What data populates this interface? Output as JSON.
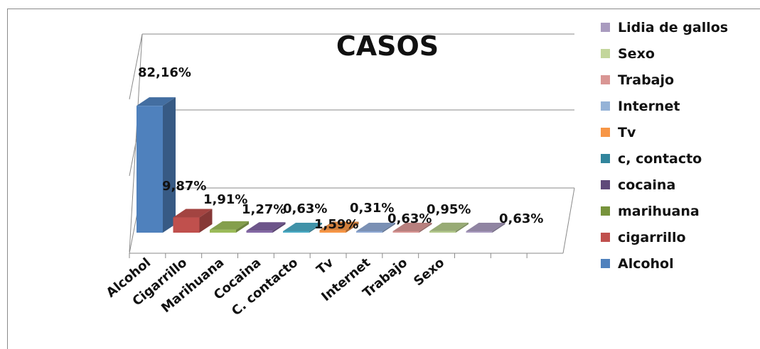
{
  "chart_data": {
    "type": "bar",
    "title": "CASOS",
    "categories": [
      "Alcohol",
      "Cigarrillo",
      "Marihuana",
      "Cocaina",
      "C. contacto",
      "Tv",
      "Internet",
      "Trabajo",
      "Sexo",
      "Lidia de gallos"
    ],
    "tick_labels": [
      "Alcohol",
      "Cigarrillo",
      "Marihuana",
      "Cocaina",
      "C. contacto",
      "Tv",
      "Internet",
      "Trabajo",
      "Sexo",
      "",
      ""
    ],
    "values": [
      82.16,
      9.87,
      1.91,
      1.27,
      0.63,
      1.59,
      0.31,
      0.63,
      0.95,
      0.63
    ],
    "data_labels": [
      "82,16%",
      "9,87%",
      "1,91%",
      "1,27%",
      "0,63%",
      "1,59%",
      "0,31%",
      "0,63%",
      "0,95%",
      "0,63%"
    ],
    "colors": [
      "#4F81BD",
      "#C0504D",
      "#9BBB59",
      "#8064A2",
      "#4BACC6",
      "#F79646",
      "#8FA9D4",
      "#D99694",
      "#B3C98A",
      "#A99BBF"
    ],
    "legend": {
      "placement": "right",
      "entries": [
        {
          "label": "Lidia de gallos",
          "color": "#A99BBF"
        },
        {
          "label": "Sexo",
          "color": "#C3D69B"
        },
        {
          "label": "Trabajo",
          "color": "#D99694"
        },
        {
          "label": "Internet",
          "color": "#95B3D7"
        },
        {
          "label": "Tv",
          "color": "#F79646"
        },
        {
          "label": "c, contacto",
          "color": "#31859C"
        },
        {
          "label": "cocaina",
          "color": "#5F497A"
        },
        {
          "label": "marihuana",
          "color": "#77933C"
        },
        {
          "label": "cigarrillo",
          "color": "#C0504D"
        },
        {
          "label": "Alcohol",
          "color": "#4F81BD"
        }
      ]
    },
    "grid": true,
    "three_d": true
  }
}
